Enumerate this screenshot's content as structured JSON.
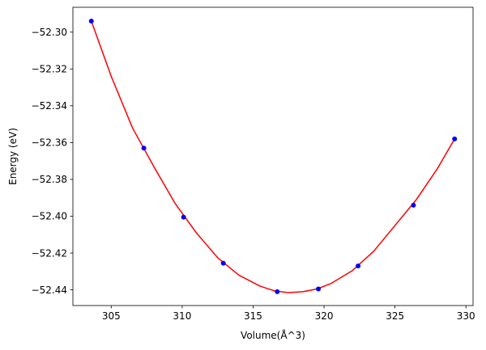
{
  "chart_data": {
    "type": "scatter",
    "title": "",
    "xlabel": "Volume(Å^3)",
    "ylabel": "Energy (eV)",
    "xlim": [
      302.3,
      330.5
    ],
    "ylim": [
      -52.4485,
      -52.2865
    ],
    "grid": false,
    "x_ticks": [
      305,
      310,
      315,
      320,
      325,
      330
    ],
    "x_tick_labels": [
      "305",
      "310",
      "315",
      "320",
      "325",
      "330"
    ],
    "y_ticks": [
      -52.3,
      -52.32,
      -52.34,
      -52.36,
      -52.38,
      -52.4,
      -52.42,
      -52.44
    ],
    "y_tick_labels": [
      "−52.30",
      "−52.32",
      "−52.34",
      "−52.36",
      "−52.38",
      "−52.40",
      "−52.42",
      "−52.44"
    ],
    "series": [
      {
        "kind": "scatter",
        "color": "#0000ff",
        "x": [
          303.6,
          307.3,
          310.1,
          312.9,
          316.7,
          319.6,
          322.4,
          326.3,
          329.2
        ],
        "y": [
          -52.294,
          -52.363,
          -52.4005,
          -52.4255,
          -52.441,
          -52.4395,
          -52.427,
          -52.394,
          -52.358
        ]
      },
      {
        "kind": "line",
        "color": "#ff0000",
        "x": [
          303.6,
          305.0,
          306.5,
          308.0,
          309.5,
          311.0,
          312.5,
          314.0,
          315.5,
          316.5,
          317.5,
          318.5,
          319.5,
          320.5,
          322.0,
          323.5,
          325.0,
          326.5,
          328.0,
          329.2
        ],
        "y": [
          -52.294,
          -52.324,
          -52.352,
          -52.373,
          -52.393,
          -52.409,
          -52.4225,
          -52.432,
          -52.438,
          -52.4405,
          -52.4415,
          -52.441,
          -52.4395,
          -52.4365,
          -52.4295,
          -52.419,
          -52.405,
          -52.391,
          -52.374,
          -52.358
        ]
      }
    ]
  }
}
